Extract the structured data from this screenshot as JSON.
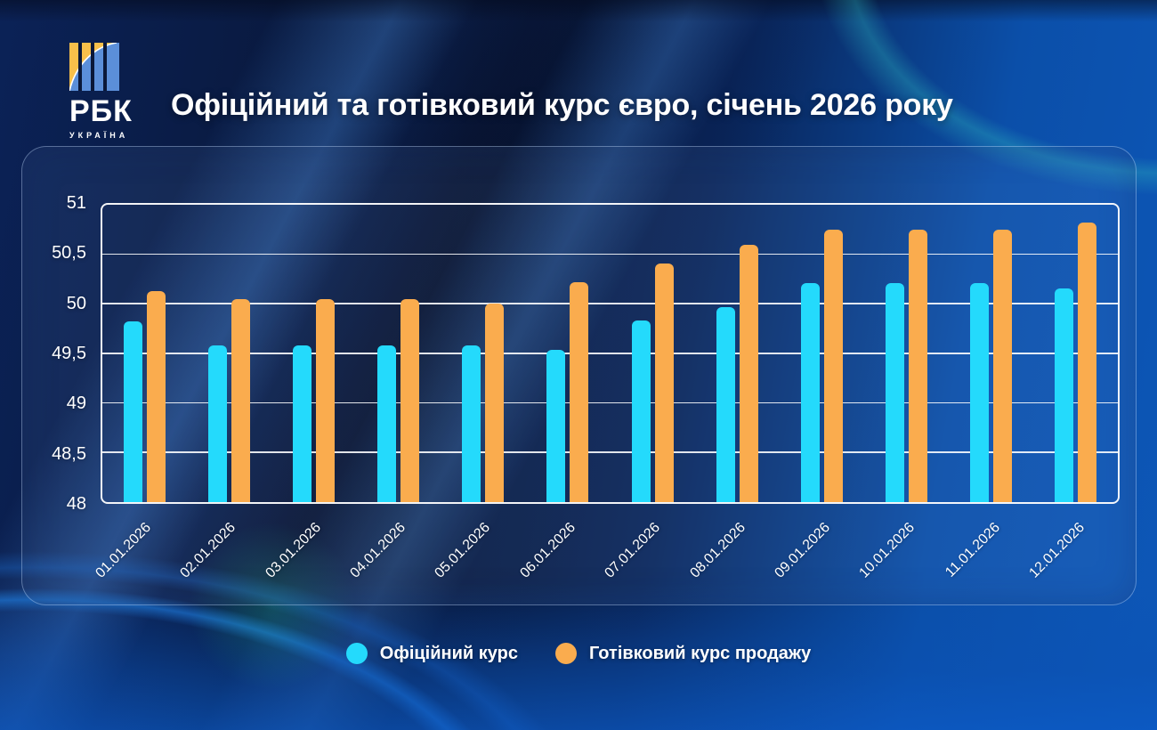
{
  "brand": {
    "name": "РБК",
    "subtitle": "УКРАЇНА",
    "logo_colors": {
      "yellow": "#F8C04A",
      "blue": "#5B8FD9",
      "dark": "#0A1838"
    }
  },
  "title": "Офіційний та готівковий курс євро, січень 2026 року",
  "colors": {
    "official_bar": "#24DAFC",
    "cash_bar": "#FAAC4E",
    "grid": "#FFFFFF",
    "text": "#FFFFFF"
  },
  "chart_data": {
    "type": "bar",
    "title": "Офіційний та готівковий курс євро, січень 2026 року",
    "categories": [
      "01.01.2026",
      "02.01.2026",
      "03.01.2026",
      "04.01.2026",
      "05.01.2026",
      "06.01.2026",
      "07.01.2026",
      "08.01.2026",
      "09.01.2026",
      "10.01.2026",
      "11.01.2026",
      "12.01.2026"
    ],
    "series": [
      {
        "name": "Офіційний курс",
        "color": "#24DAFC",
        "values": [
          49.82,
          49.58,
          49.58,
          49.58,
          49.58,
          49.54,
          49.83,
          49.97,
          50.21,
          50.21,
          50.21,
          50.16
        ]
      },
      {
        "name": "Готівковий курс продажу",
        "color": "#FAAC4E",
        "values": [
          50.13,
          50.05,
          50.05,
          50.05,
          50.0,
          50.22,
          50.41,
          50.6,
          50.75,
          50.75,
          50.75,
          50.82
        ]
      }
    ],
    "xlabel": "",
    "ylabel": "",
    "ylim": [
      48,
      51
    ],
    "yticks": [
      51,
      50.5,
      50,
      49.5,
      49,
      48.5,
      48
    ],
    "ytick_labels": [
      "51",
      "50,5",
      "50",
      "49,5",
      "49",
      "48,5",
      "48"
    ],
    "grid": true,
    "legend_position": "bottom"
  }
}
